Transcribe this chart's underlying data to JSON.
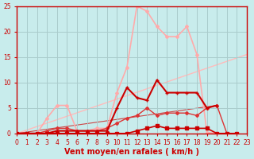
{
  "title": "",
  "xlabel": "Vent moyen/en rafales ( km/h )",
  "xlabel_color": "#cc0000",
  "bg_color": "#c8ecec",
  "grid_color": "#aacccc",
  "axis_color": "#cc0000",
  "xlim": [
    0,
    23
  ],
  "ylim": [
    0,
    25
  ],
  "xticks": [
    0,
    1,
    2,
    3,
    4,
    5,
    6,
    7,
    8,
    9,
    10,
    11,
    12,
    13,
    14,
    15,
    16,
    17,
    18,
    19,
    20,
    21,
    22,
    23
  ],
  "yticks": [
    0,
    5,
    10,
    15,
    20,
    25
  ],
  "tick_fontsize": 5.5,
  "label_fontsize": 7,
  "line_diag_light": {
    "x": [
      0,
      23
    ],
    "y": [
      0,
      15.5
    ],
    "color": "#ffbbbb",
    "lw": 1.0
  },
  "line_diag_dark": {
    "x": [
      0,
      20
    ],
    "y": [
      0,
      5.5
    ],
    "color": "#cc4444",
    "lw": 0.8
  },
  "line_pink_high": {
    "x": [
      0,
      1,
      2,
      3,
      4,
      5,
      6,
      7,
      8,
      9,
      10,
      11,
      12,
      13,
      14,
      15,
      16,
      17,
      18,
      19,
      20,
      21,
      22
    ],
    "y": [
      0,
      0,
      0,
      3,
      5.5,
      5.5,
      0.5,
      0.5,
      1,
      1,
      8,
      13,
      25,
      24,
      21,
      19,
      19,
      21,
      15.5,
      0.2,
      0,
      0,
      0
    ],
    "color": "#ffaaaa",
    "lw": 1.2,
    "marker": "D",
    "ms": 2.0
  },
  "line_mid": {
    "x": [
      0,
      1,
      2,
      3,
      4,
      5,
      6,
      7,
      8,
      9,
      10,
      11,
      12,
      13,
      14,
      15,
      16,
      17,
      18,
      19,
      20,
      21,
      22
    ],
    "y": [
      0,
      0,
      0,
      0.5,
      1,
      1,
      0.5,
      0.5,
      0.5,
      1,
      2,
      3,
      3.5,
      5,
      3.5,
      4,
      4,
      4,
      3.5,
      5,
      5.5,
      0,
      0
    ],
    "color": "#dd3333",
    "lw": 1.0,
    "marker": "D",
    "ms": 2.0
  },
  "line_main": {
    "x": [
      0,
      1,
      2,
      3,
      4,
      5,
      6,
      7,
      8,
      9,
      10,
      11,
      12,
      13,
      14,
      15,
      16,
      17,
      18,
      19,
      20
    ],
    "y": [
      0,
      0,
      0,
      0,
      0.5,
      0.5,
      0.5,
      0.5,
      0.5,
      0.5,
      5,
      9,
      7,
      6.5,
      10.5,
      8,
      8,
      8,
      8,
      5,
      5.5
    ],
    "color": "#cc0000",
    "lw": 1.5,
    "marker": "+",
    "ms": 3.5
  },
  "line_bottom": {
    "x": [
      0,
      1,
      2,
      3,
      4,
      5,
      6,
      7,
      8,
      9,
      10,
      11,
      12,
      13,
      14,
      15,
      16,
      17,
      18,
      19,
      20,
      21,
      22
    ],
    "y": [
      0,
      0,
      0,
      0,
      0,
      0,
      0,
      0,
      0,
      0,
      0,
      0,
      0.5,
      1,
      1.5,
      1,
      1,
      1,
      1,
      1,
      0,
      0,
      0
    ],
    "color": "#cc0000",
    "lw": 1.2,
    "marker": "s",
    "ms": 2.5
  }
}
